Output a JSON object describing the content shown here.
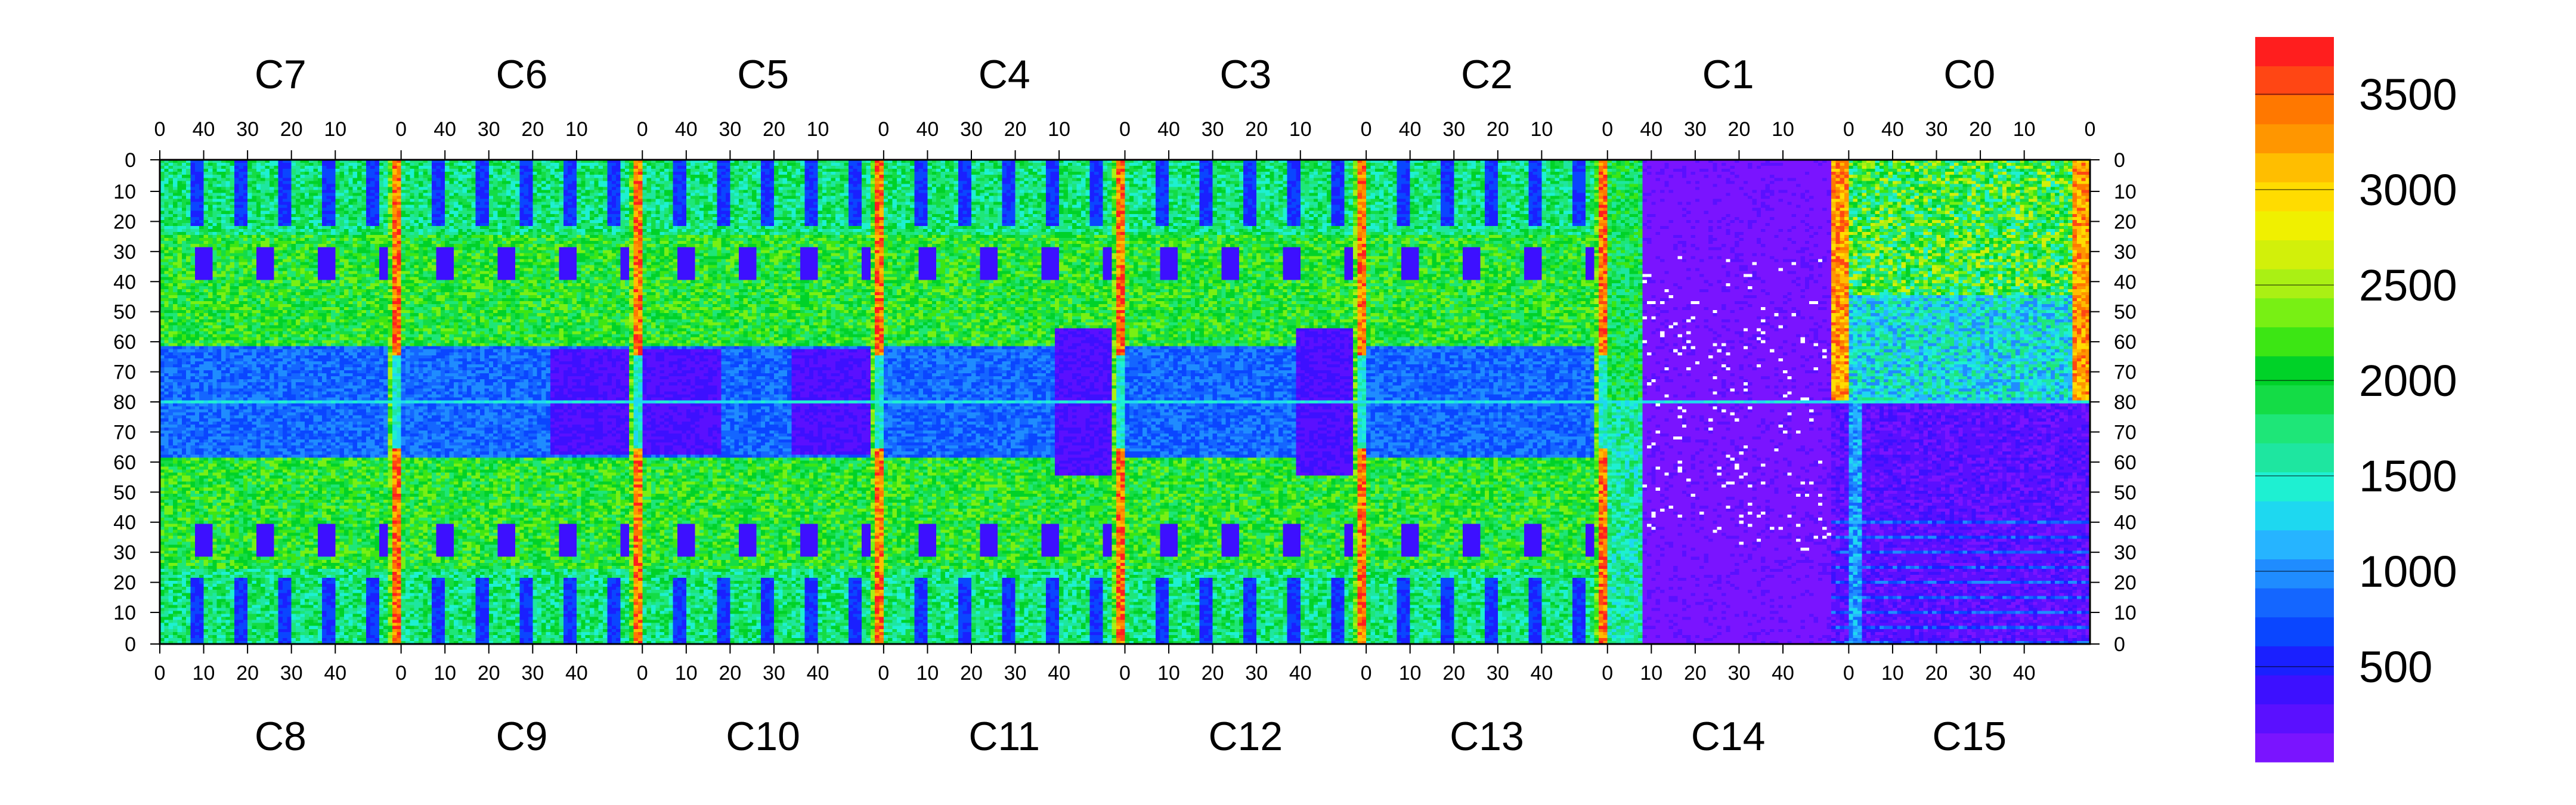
{
  "chart_data": {
    "type": "heatmap",
    "title": "",
    "xlabel": "",
    "ylabel": "",
    "top_chips": [
      "C7",
      "C6",
      "C5",
      "C4",
      "C3",
      "C2",
      "C1",
      "C0"
    ],
    "bottom_chips": [
      "C8",
      "C9",
      "C10",
      "C11",
      "C12",
      "C13",
      "C14",
      "C15"
    ],
    "top_x_ticks": [
      "40",
      "30",
      "20",
      "10",
      "0"
    ],
    "bottom_x_ticks": [
      "0",
      "10",
      "20",
      "30",
      "40"
    ],
    "top_last_tick": "0",
    "y_ticks_upper": [
      "0",
      "10",
      "20",
      "30",
      "40",
      "50",
      "60",
      "70",
      "80"
    ],
    "y_ticks_lower": [
      "70",
      "60",
      "50",
      "40",
      "30",
      "20",
      "10",
      "0"
    ],
    "colorbar_ticks": [
      "500",
      "1000",
      "1500",
      "2000",
      "2500",
      "3000",
      "3500"
    ],
    "zlim": [
      0,
      3800
    ],
    "palette": [
      "#7a14ff",
      "#5a10ff",
      "#3d10ff",
      "#1a20ff",
      "#0a46ff",
      "#1466ff",
      "#1f8cff",
      "#26b4ff",
      "#1ed8f0",
      "#1ef0d2",
      "#1ee6a0",
      "#1ee678",
      "#14dc46",
      "#00d228",
      "#3ce614",
      "#78f014",
      "#aaf014",
      "#d2f00a",
      "#f0f000",
      "#ffdc00",
      "#ffbe00",
      "#ff9600",
      "#ff7800",
      "#ff4614",
      "#ff1e1e"
    ],
    "rows": 161,
    "cols": 440
  }
}
